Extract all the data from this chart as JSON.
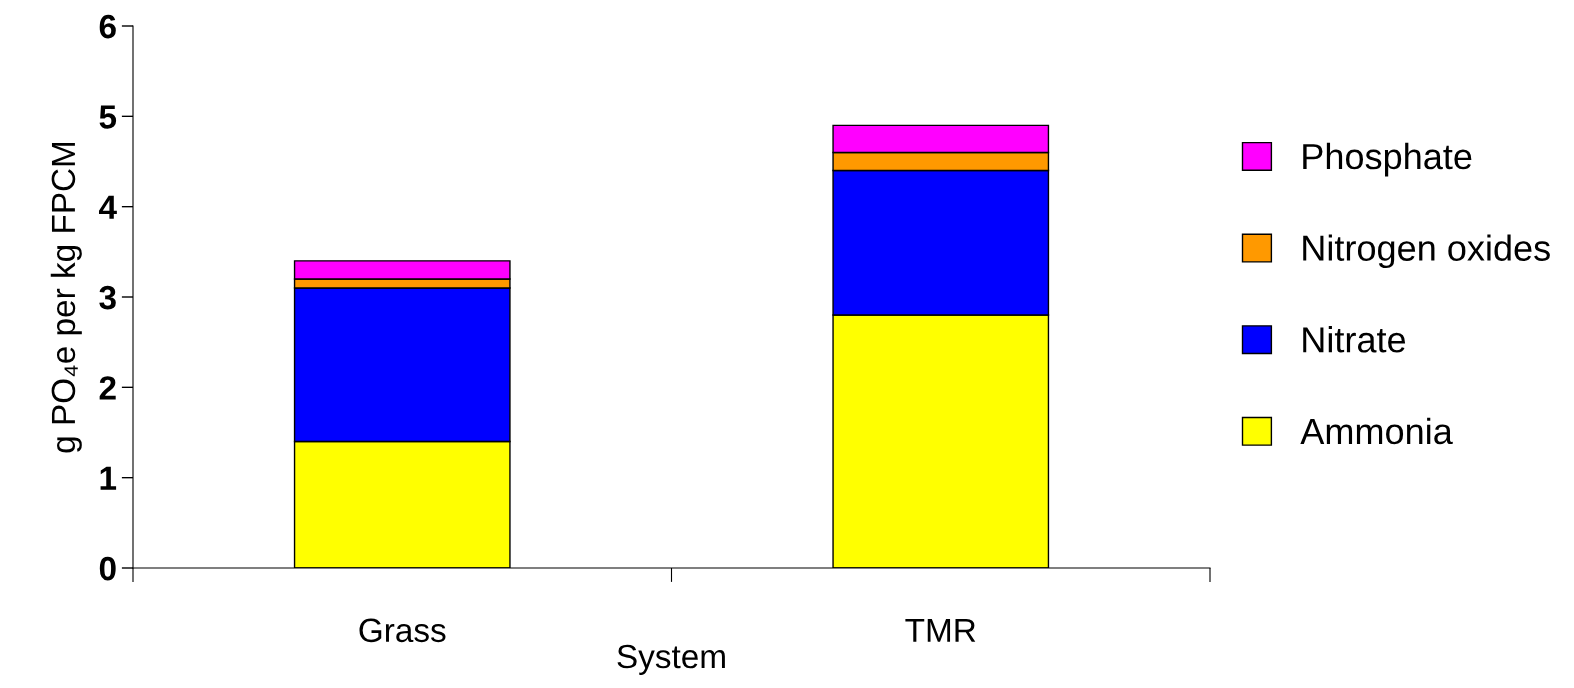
{
  "chart_data": {
    "type": "bar",
    "stacked": true,
    "xlabel": "System",
    "ylabel": "g PO₄e per kg FPCM",
    "categories": [
      "Grass",
      "TMR"
    ],
    "series": [
      {
        "name": "Ammonia",
        "color": "#ffff00",
        "values": [
          1.4,
          2.8
        ]
      },
      {
        "name": "Nitrate",
        "color": "#0000ff",
        "values": [
          1.7,
          1.6
        ]
      },
      {
        "name": "Nitrogen oxides",
        "color": "#ff9900",
        "values": [
          0.1,
          0.2
        ]
      },
      {
        "name": "Phosphate",
        "color": "#ff00ff",
        "values": [
          0.2,
          0.3
        ]
      }
    ],
    "ylim": [
      0,
      6
    ],
    "yticks": [
      0,
      1,
      2,
      3,
      4,
      5,
      6
    ],
    "grid": false,
    "legend": "right"
  }
}
